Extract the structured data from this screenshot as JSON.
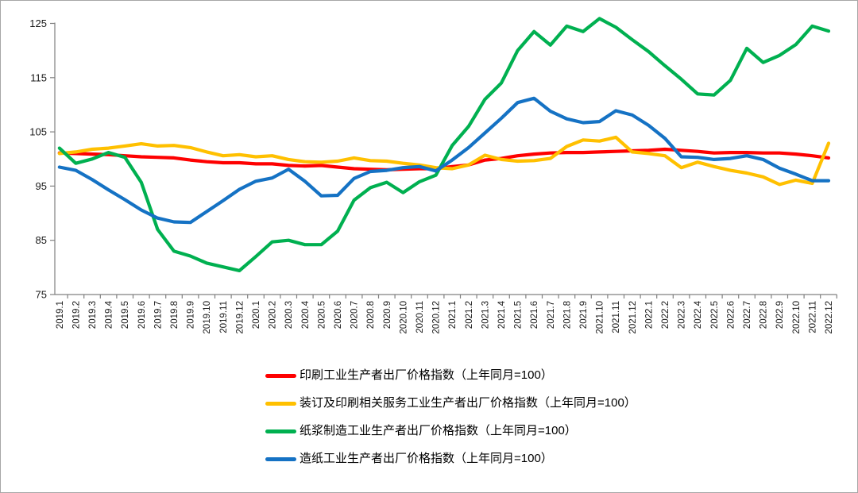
{
  "chart_data": {
    "type": "line",
    "title": "",
    "xlabel": "",
    "ylabel": "",
    "ylim": [
      75,
      125
    ],
    "y_ticks": [
      75,
      85,
      95,
      105,
      115,
      125
    ],
    "grid": false,
    "legend_position": "bottom-left",
    "categories": [
      "2019.1",
      "2019.2",
      "2019.3",
      "2019.4",
      "2019.5",
      "2019.6",
      "2019.7",
      "2019.8",
      "2019.9",
      "2019.10",
      "2019.11",
      "2019.12",
      "2020.1",
      "2020.2",
      "2020.3",
      "2020.4",
      "2020.5",
      "2020.6",
      "2020.7",
      "2020.8",
      "2020.9",
      "2020.10",
      "2020.11",
      "2020.12",
      "2021.1",
      "2021.2",
      "2021.3",
      "2021.4",
      "2021.5",
      "2021.6",
      "2021.7",
      "2021.8",
      "2021.9",
      "2021.10",
      "2021.11",
      "2021.12",
      "2022.1",
      "2022.2",
      "2022.3",
      "2022.4",
      "2022.5",
      "2022.6",
      "2022.7",
      "2022.8",
      "2022.9",
      "2022.10",
      "2022.11",
      "2022.12"
    ],
    "series": [
      {
        "id": "printing-index",
        "name": "印刷工业生产者出厂价格指数（上年同月=100）",
        "color": "#fe0000",
        "values": [
          101.1,
          101.0,
          100.9,
          100.8,
          100.6,
          100.4,
          100.3,
          100.2,
          99.8,
          99.5,
          99.3,
          99.3,
          99.1,
          99.1,
          98.8,
          98.7,
          98.8,
          98.5,
          98.2,
          98.1,
          98.0,
          98.1,
          98.2,
          98.2,
          98.6,
          98.9,
          99.8,
          100.1,
          100.6,
          100.9,
          101.1,
          101.2,
          101.2,
          101.3,
          101.4,
          101.5,
          101.6,
          101.8,
          101.6,
          101.4,
          101.1,
          101.2,
          101.2,
          101.1,
          101.1,
          100.9,
          100.6,
          100.2
        ]
      },
      {
        "id": "binding-printing-services-index",
        "name": "装订及印刷相关服务工业生产者出厂价格指数（上年同月=100）",
        "color": "#ffc000",
        "values": [
          101.0,
          101.3,
          101.8,
          102.0,
          102.4,
          102.8,
          102.4,
          102.5,
          102.1,
          101.3,
          100.6,
          100.8,
          100.4,
          100.6,
          99.9,
          99.5,
          99.4,
          99.6,
          100.2,
          99.7,
          99.6,
          99.2,
          98.9,
          98.4,
          98.2,
          98.9,
          100.7,
          99.9,
          99.6,
          99.7,
          100.1,
          102.3,
          103.5,
          103.3,
          104.0,
          101.3,
          101.0,
          100.6,
          98.4,
          99.4,
          98.6,
          97.9,
          97.4,
          96.7,
          95.3,
          96.1,
          95.5,
          102.9
        ]
      },
      {
        "id": "pulp-manufacturing-index",
        "name": "纸浆制造工业生产者出厂价格指数（上年同月=100）",
        "color": "#00b050",
        "values": [
          102.0,
          99.2,
          100.0,
          101.2,
          100.3,
          95.7,
          87.0,
          83.0,
          82.1,
          80.8,
          80.1,
          79.4,
          82.0,
          84.7,
          85.0,
          84.2,
          84.2,
          86.7,
          92.4,
          94.7,
          95.7,
          93.8,
          95.8,
          97.0,
          102.5,
          106.0,
          111.0,
          114.0,
          120.0,
          123.5,
          121.0,
          124.5,
          123.5,
          125.9,
          124.3,
          122.0,
          119.8,
          117.2,
          114.7,
          112.0,
          111.8,
          114.5,
          120.4,
          117.8,
          119.1,
          121.1,
          124.5,
          123.6
        ]
      },
      {
        "id": "papermaking-index",
        "name": "造纸工业生产者出厂价格指数（上年同月=100）",
        "color": "#1572c4",
        "values": [
          98.5,
          97.9,
          96.2,
          94.3,
          92.5,
          90.6,
          89.1,
          88.4,
          88.3,
          90.3,
          92.3,
          94.4,
          95.9,
          96.5,
          98.1,
          95.9,
          93.2,
          93.3,
          96.4,
          97.7,
          97.9,
          98.4,
          98.6,
          97.8,
          99.8,
          102.1,
          104.8,
          107.5,
          110.4,
          111.2,
          108.8,
          107.4,
          106.7,
          106.9,
          108.9,
          108.1,
          106.2,
          103.8,
          100.4,
          100.3,
          99.9,
          100.1,
          100.6,
          99.9,
          98.3,
          97.2,
          96.0,
          96.0
        ]
      }
    ]
  },
  "style": {
    "axis_color": "#808080",
    "text_color": "#1a1a1a",
    "background": "#ffffff"
  }
}
